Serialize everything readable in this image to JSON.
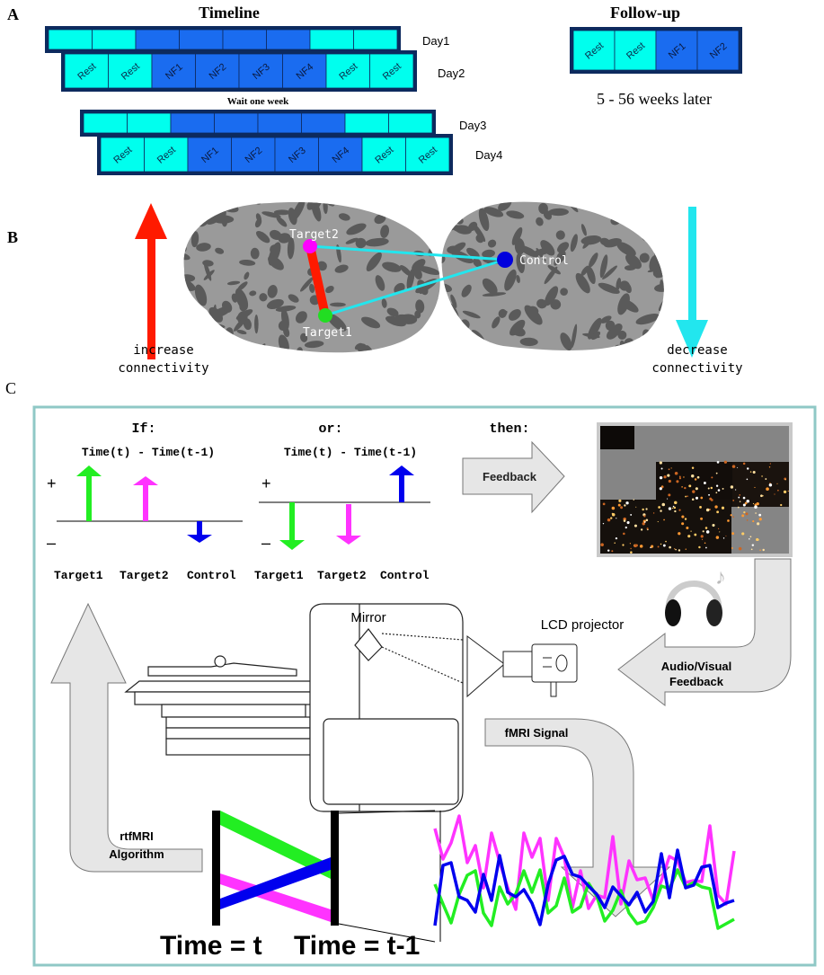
{
  "panel_a": {
    "label": "A",
    "timeline_title": "Timeline",
    "days": [
      "Day1",
      "Day2",
      "Day3",
      "Day4"
    ],
    "blocks": [
      "Rest",
      "Rest",
      "NF1",
      "NF2",
      "NF3",
      "NF4",
      "Rest",
      "Rest"
    ],
    "wait_text": "Wait one week",
    "followup_title": "Follow-up",
    "followup_blocks": [
      "Rest",
      "Rest",
      "NF1",
      "NF2"
    ],
    "followup_note": "5 - 56 weeks later",
    "colors": {
      "rest": "#00ffee",
      "nf": "#1a6cf0",
      "frame": "#0d2a5e"
    }
  },
  "panel_b": {
    "label": "B",
    "nodes": {
      "target2": "Target2",
      "target1": "Target1",
      "control": "Control"
    },
    "increase_line1": "increase",
    "increase_line2": "connectivity",
    "decrease_line1": "decrease",
    "decrease_line2": "connectivity",
    "colors": {
      "target2": "#ff00ff",
      "target1": "#22dd22",
      "control": "#0000dd",
      "increase": "#ff1a00",
      "decrease": "#22e6ee"
    }
  },
  "panel_c": {
    "label": "C",
    "if_label": "If:",
    "or_label": "or:",
    "then_label": "then:",
    "diff_label": "Time(t) - Time(t-1)",
    "plus": "+",
    "minus": "–",
    "targets": [
      "Target1",
      "Target2",
      "Control"
    ],
    "feedback": "Feedback",
    "mirror": "Mirror",
    "lcd_projector": "LCD projector",
    "av_feedback_line1": "Audio/Visual",
    "av_feedback_line2": "Feedback",
    "fmri_signal": "fMRI Signal",
    "algorithm_line1": "rtfMRI",
    "algorithm_line2": "Algorithm",
    "time_t": "Time = t",
    "time_t1": "Time = t-1"
  }
}
